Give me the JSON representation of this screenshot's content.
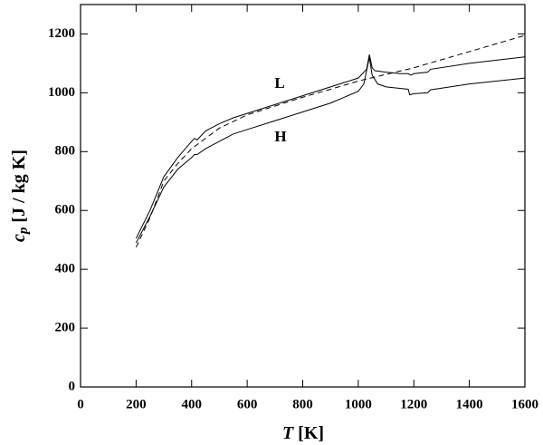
{
  "chart_data": {
    "type": "line",
    "x_label_symbol": "T",
    "x_label_unit": "[K]",
    "y_label_symbol": "c",
    "y_label_subscript": "p",
    "y_label_unit": "[J / kg K]",
    "xlim": [
      0,
      1600
    ],
    "ylim": [
      0,
      1300
    ],
    "xticks": [
      0,
      200,
      400,
      600,
      800,
      1000,
      1200,
      1400,
      1600
    ],
    "yticks": [
      0,
      200,
      400,
      600,
      800,
      1000,
      1200
    ],
    "annotations": [
      "L",
      "H"
    ],
    "series": [
      {
        "color": "#000000",
        "dashed": false,
        "x": [
          200,
          250,
          300,
          350,
          400,
          410,
          420,
          450,
          500,
          550,
          600,
          700,
          800,
          900,
          950,
          1000,
          1030,
          1040,
          1050,
          1060,
          1100,
          1150,
          1180,
          1190,
          1200,
          1250,
          1260,
          1400,
          1600
        ],
        "values": [
          505,
          600,
          715,
          780,
          835,
          845,
          840,
          870,
          895,
          915,
          930,
          960,
          990,
          1020,
          1035,
          1050,
          1080,
          1130,
          1085,
          1075,
          1070,
          1065,
          1065,
          1060,
          1065,
          1070,
          1080,
          1100,
          1122
        ]
      },
      {
        "color": "#000000",
        "dashed": false,
        "x": [
          200,
          250,
          300,
          350,
          400,
          410,
          420,
          450,
          500,
          550,
          600,
          700,
          800,
          900,
          1000,
          1020,
          1040,
          1050,
          1070,
          1100,
          1150,
          1180,
          1185,
          1200,
          1250,
          1260,
          1400,
          1600
        ],
        "values": [
          490,
          580,
          680,
          740,
          780,
          790,
          790,
          810,
          835,
          860,
          875,
          905,
          935,
          965,
          1005,
          1030,
          1120,
          1060,
          1030,
          1020,
          1015,
          1012,
          993,
          997,
          1000,
          1010,
          1030,
          1050
        ]
      },
      {
        "color": "#000000",
        "dashed": true,
        "x": [
          200,
          250,
          300,
          350,
          400,
          500,
          600,
          700,
          800,
          900,
          1000,
          1200,
          1400,
          1600
        ],
        "values": [
          475,
          575,
          700,
          760,
          810,
          880,
          925,
          955,
          985,
          1012,
          1040,
          1085,
          1140,
          1195
        ]
      }
    ]
  }
}
